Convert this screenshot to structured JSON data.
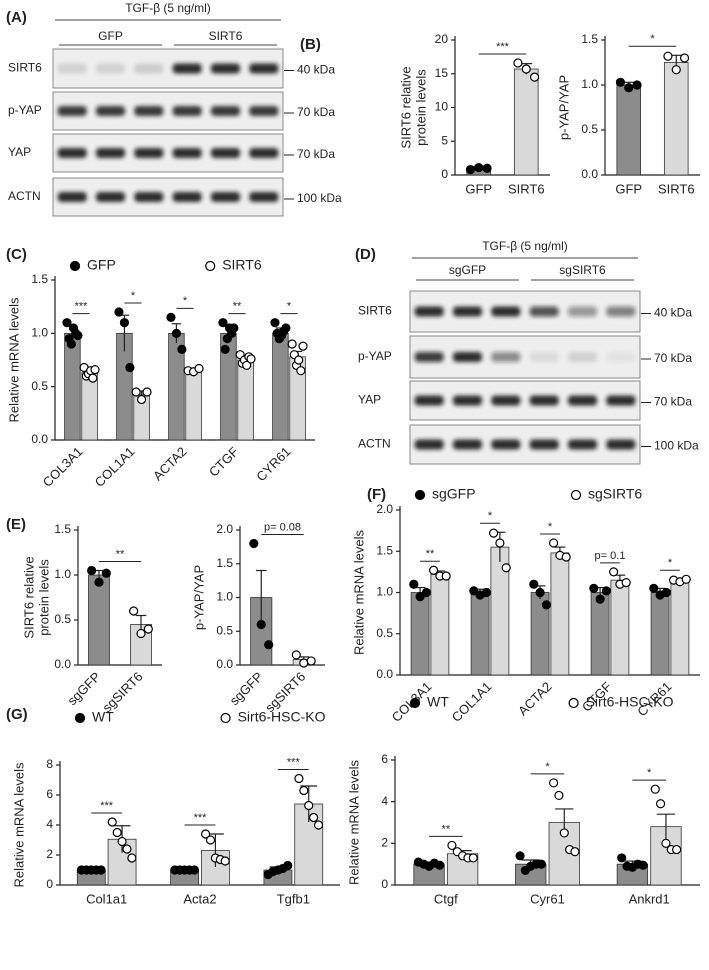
{
  "blots": [
    {
      "label": "(A)",
      "treatment": "TGF-β (5 ng/ml)",
      "groups": [
        "GFP",
        "SIRT6"
      ],
      "rows": [
        {
          "protein": "SIRT6",
          "size": "40 kDa"
        },
        {
          "protein": "p-YAP",
          "size": "70 kDa"
        },
        {
          "protein": "YAP",
          "size": "70 kDa"
        },
        {
          "protein": "ACTN",
          "size": "100 kDa"
        }
      ]
    },
    {
      "label": "(D)",
      "treatment": "TGF-β (5 ng/ml)",
      "groups": [
        "sgGFP",
        "sgSIRT6"
      ],
      "rows": [
        {
          "protein": "SIRT6",
          "size": "40 kDa"
        },
        {
          "protein": "p-YAP",
          "size": "70 kDa"
        },
        {
          "protein": "YAP",
          "size": "70 kDa"
        },
        {
          "protein": "ACTN",
          "size": "100 kDa"
        }
      ]
    }
  ],
  "chart_data": [
    {
      "type": "bar",
      "panel_label": "(B)",
      "ylabel": [
        "SIRT6 relative",
        "protein levels"
      ],
      "categories": [
        "GFP",
        "SIRT6"
      ],
      "values": [
        1.0,
        15.7
      ],
      "errors": [
        0.2,
        0.8
      ],
      "points": [
        [
          0.8,
          1.1,
          1.0
        ],
        [
          16.6,
          15.7,
          14.5
        ]
      ],
      "colors": [
        "#8c8c8c",
        "#d9d9d9"
      ],
      "point_colors": [
        "#000000",
        "#ffffff"
      ],
      "ylim": [
        0,
        20
      ],
      "yticks": [
        0,
        5,
        10,
        15,
        20
      ],
      "significance": "***"
    },
    {
      "type": "bar",
      "ylabel": "p-YAP/YAP",
      "categories": [
        "GFP",
        "SIRT6"
      ],
      "values": [
        1.0,
        1.25
      ],
      "errors": [
        0.03,
        0.08
      ],
      "points": [
        [
          1.03,
          0.97,
          1.0
        ],
        [
          1.32,
          1.17,
          1.3
        ]
      ],
      "colors": [
        "#8c8c8c",
        "#d9d9d9"
      ],
      "point_colors": [
        "#000000",
        "#ffffff"
      ],
      "ylim": [
        0,
        1.5
      ],
      "yticks": [
        {
          "value": 0,
          "label": "0.0"
        },
        0.5,
        {
          "value": 1,
          "label": "1.0"
        },
        1.5
      ],
      "significance": "*"
    },
    {
      "type": "bar",
      "panel_label": "(C)",
      "ylabel": "Relative mRNA levels",
      "categories": [
        "COL3A1",
        "COL1A1",
        "ACTA2",
        "CTGF",
        "CYR61"
      ],
      "series": [
        {
          "name": "GFP",
          "color": "#8c8c8c",
          "point_fill": "#000000",
          "values": [
            1.0,
            1.0,
            1.0,
            1.0,
            1.0
          ],
          "errors": [
            0.07,
            0.17,
            0.09,
            0.07,
            0.05
          ],
          "points": [
            [
              1.1,
              0.95,
              0.9,
              1.05,
              1.0,
              0.98
            ],
            [
              1.2,
              1.1,
              0.68
            ],
            [
              1.15,
              1.0,
              0.85
            ],
            [
              1.1,
              0.85,
              0.95,
              1.05,
              1.0,
              1.05
            ],
            [
              1.1,
              1.0,
              0.95,
              0.98,
              1.02,
              1.05
            ]
          ]
        },
        {
          "name": "SIRT6",
          "color": "#d9d9d9",
          "point_fill": "#ffffff",
          "values": [
            0.63,
            0.43,
            0.65,
            0.75,
            0.78
          ],
          "errors": [
            0.03,
            0.03,
            0.01,
            0.03,
            0.05
          ],
          "points": [
            [
              0.68,
              0.6,
              0.62,
              0.65,
              0.58,
              0.66
            ],
            [
              0.45,
              0.38,
              0.45
            ],
            [
              0.65,
              0.64,
              0.67
            ],
            [
              0.8,
              0.72,
              0.75,
              0.7,
              0.78,
              0.76
            ],
            [
              0.9,
              0.8,
              0.7,
              0.75,
              0.65,
              0.88
            ]
          ]
        }
      ],
      "ylim": [
        0,
        1.5
      ],
      "yticks": [
        {
          "value": 0,
          "label": "0.0"
        },
        0.5,
        {
          "value": 1,
          "label": "1.0"
        },
        1.5
      ],
      "significance": [
        "***",
        "*",
        "*",
        "**",
        "*"
      ]
    },
    {
      "type": "bar",
      "panel_label": "(E)",
      "ylabel": [
        "SIRT6 relative",
        "protein levels"
      ],
      "categories": [
        "sgGFP",
        "sgSIRT6"
      ],
      "values": [
        1.0,
        0.45
      ],
      "errors": [
        0.05,
        0.1
      ],
      "points": [
        [
          1.05,
          0.92,
          1.02
        ],
        [
          0.6,
          0.35,
          0.4
        ]
      ],
      "colors": [
        "#8c8c8c",
        "#d9d9d9"
      ],
      "point_colors": [
        "#000000",
        "#ffffff"
      ],
      "ylim": [
        0,
        1.5
      ],
      "yticks": [
        {
          "value": 0,
          "label": "0.0"
        },
        0.5,
        {
          "value": 1,
          "label": "1.0"
        },
        1.5
      ],
      "significance": "**"
    },
    {
      "type": "bar",
      "ylabel": "p-YAP/YAP",
      "categories": [
        "sgGFP",
        "sgSIRT6"
      ],
      "values": [
        1.0,
        0.08
      ],
      "errors": [
        0.4,
        0.04
      ],
      "points": [
        [
          1.8,
          0.6,
          0.3
        ],
        [
          0.15,
          0.03,
          0.06
        ]
      ],
      "colors": [
        "#8c8c8c",
        "#d9d9d9"
      ],
      "point_colors": [
        "#000000",
        "#ffffff"
      ],
      "ylim": [
        0,
        2
      ],
      "yticks": [
        {
          "value": 0,
          "label": "0.0"
        },
        0.5,
        {
          "value": 1,
          "label": "1.0"
        },
        1.5,
        {
          "value": 2,
          "label": "2.0"
        }
      ],
      "significance": "p= 0.08"
    },
    {
      "type": "bar",
      "panel_label": "(F)",
      "ylabel": "Relative mRNA levels",
      "categories": [
        "COL3A1",
        "COL1A1",
        "ACTA2",
        "CTGF",
        "CYR61"
      ],
      "series": [
        {
          "name": "sgGFP",
          "color": "#8c8c8c",
          "point_fill": "#000000",
          "values": [
            1.0,
            1.0,
            1.0,
            1.0,
            1.0
          ],
          "errors": [
            0.06,
            0.04,
            0.08,
            0.06,
            0.05
          ],
          "points": [
            [
              1.1,
              0.95,
              1.0
            ],
            [
              1.02,
              0.97,
              1.0
            ],
            [
              1.1,
              1.0,
              0.85
            ],
            [
              1.05,
              0.92,
              1.02
            ],
            [
              1.05,
              0.97,
              1.0
            ]
          ]
        },
        {
          "name": "sgSIRT6",
          "color": "#d9d9d9",
          "point_fill": "#ffffff",
          "values": [
            1.22,
            1.55,
            1.48,
            1.15,
            1.14
          ],
          "errors": [
            0.04,
            0.18,
            0.07,
            0.06,
            0.02
          ],
          "points": [
            [
              1.27,
              1.2,
              1.2
            ],
            [
              1.72,
              1.6,
              1.3
            ],
            [
              1.6,
              1.45,
              1.43
            ],
            [
              1.25,
              1.1,
              1.12
            ],
            [
              1.15,
              1.13,
              1.16
            ]
          ]
        }
      ],
      "ylim": [
        0,
        2
      ],
      "yticks": [
        {
          "value": 0,
          "label": "0.0"
        },
        0.5,
        {
          "value": 1,
          "label": "1.0"
        },
        1.5,
        {
          "value": 2,
          "label": "2.0"
        }
      ],
      "significance": [
        "**",
        "*",
        "*",
        "p= 0.1",
        "*"
      ]
    },
    {
      "type": "bar",
      "panel_label": "(G)",
      "ylabel": "Relative mRNA levels",
      "categories": [
        "Col1a1",
        "Acta2",
        "Tgfb1"
      ],
      "series": [
        {
          "name": "WT",
          "color": "#8c8c8c",
          "point_fill": "#000000",
          "values": [
            1,
            1,
            1
          ],
          "errors": [
            0.03,
            0.03,
            0.2
          ],
          "points": [
            [
              1,
              1,
              1,
              1,
              1
            ],
            [
              1,
              1,
              1,
              1,
              1
            ],
            [
              0.7,
              0.9,
              1,
              1.1,
              1.3
            ]
          ]
        },
        {
          "name": "Sirt6-HSC-KO",
          "color": "#d9d9d9",
          "point_fill": "#ffffff",
          "values": [
            3.05,
            2.3,
            5.4
          ],
          "errors": [
            0.9,
            1.1,
            1.2
          ],
          "points": [
            [
              4.2,
              3.5,
              2.9,
              2.4,
              1.8
            ],
            [
              3.4,
              3.0,
              1.8,
              1.7,
              1.6
            ],
            [
              7.1,
              6.3,
              5.3,
              4.5,
              4.0
            ]
          ]
        }
      ],
      "ylim": [
        0,
        8
      ],
      "yticks": [
        0,
        2,
        4,
        6,
        8
      ],
      "significance": [
        "***",
        "***",
        "***"
      ]
    },
    {
      "type": "bar",
      "ylabel": "Relative mRNA levels",
      "categories": [
        "Ctgf",
        "Cyr61",
        "Ankrd1"
      ],
      "series": [
        {
          "name": "WT",
          "color": "#8c8c8c",
          "point_fill": "#000000",
          "values": [
            1,
            1,
            1
          ],
          "errors": [
            0.1,
            0.2,
            0.15
          ],
          "points": [
            [
              1.1,
              1.0,
              0.9,
              1.05,
              0.95
            ],
            [
              1.4,
              0.7,
              0.9,
              1.0,
              1.0
            ],
            [
              1.3,
              0.9,
              0.85,
              1.0,
              0.95
            ]
          ]
        },
        {
          "name": "Sirt6-HSC-KO",
          "color": "#d9d9d9",
          "point_fill": "#ffffff",
          "values": [
            1.5,
            3.0,
            2.8
          ],
          "errors": [
            0.15,
            0.65,
            0.6
          ],
          "points": [
            [
              1.9,
              1.6,
              1.4,
              1.3,
              1.3
            ],
            [
              4.9,
              4.3,
              2.5,
              1.7,
              1.6
            ],
            [
              4.6,
              3.9,
              2.0,
              1.7,
              1.7
            ]
          ]
        }
      ],
      "ylim": [
        0,
        6
      ],
      "yticks": [
        0,
        2,
        4,
        6
      ],
      "significance": [
        "**",
        "*",
        "*"
      ]
    }
  ]
}
